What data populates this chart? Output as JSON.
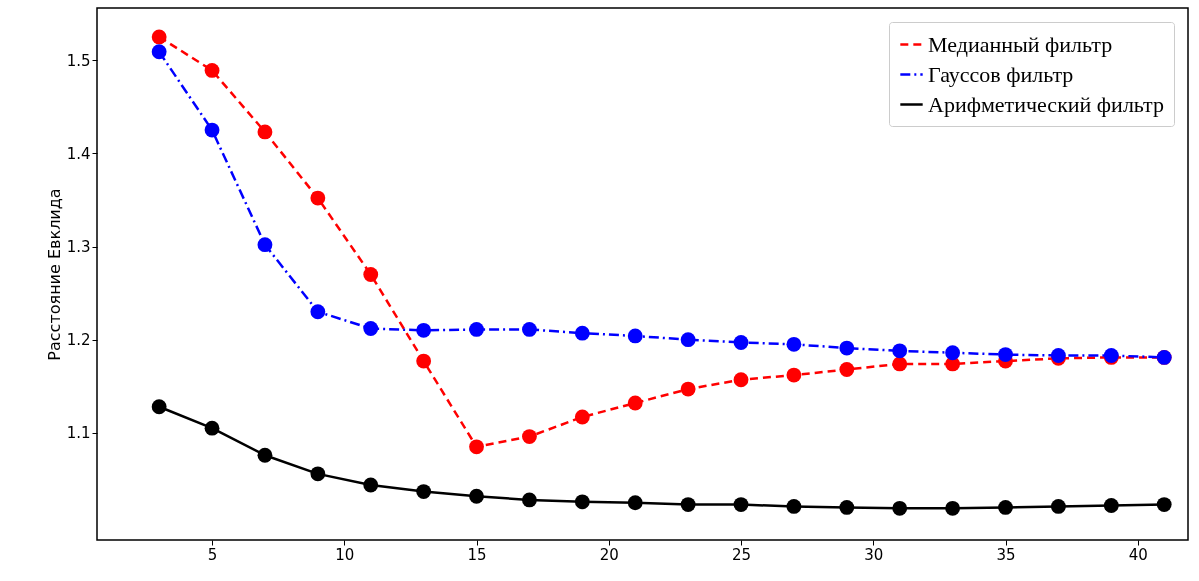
{
  "chart_data": {
    "type": "line",
    "ylabel": "Расстояние Евклида",
    "x": [
      3,
      5,
      7,
      9,
      11,
      13,
      15,
      17,
      19,
      21,
      23,
      25,
      27,
      29,
      31,
      33,
      35,
      37,
      39,
      41
    ],
    "series": [
      {
        "name": "Медианный фильтр",
        "color": "#ff0000",
        "line_style": "dashed",
        "values": [
          1.525,
          1.489,
          1.423,
          1.352,
          1.27,
          1.177,
          1.085,
          1.096,
          1.117,
          1.132,
          1.147,
          1.157,
          1.162,
          1.168,
          1.174,
          1.174,
          1.177,
          1.18,
          1.181,
          1.181
        ]
      },
      {
        "name": "Гауссов фильтр",
        "color": "#0000ff",
        "line_style": "dashdot",
        "values": [
          1.509,
          1.425,
          1.302,
          1.23,
          1.212,
          1.21,
          1.211,
          1.211,
          1.207,
          1.204,
          1.2,
          1.197,
          1.195,
          1.191,
          1.188,
          1.186,
          1.184,
          1.183,
          1.183,
          1.181
        ]
      },
      {
        "name": "Арифметический фильтр",
        "color": "#000000",
        "line_style": "solid",
        "values": [
          1.128,
          1.105,
          1.076,
          1.056,
          1.044,
          1.037,
          1.032,
          1.028,
          1.026,
          1.025,
          1.023,
          1.023,
          1.021,
          1.02,
          1.019,
          1.019,
          1.02,
          1.021,
          1.022,
          1.023
        ]
      }
    ],
    "xlim": [
      0.65,
      41.9
    ],
    "ylim": [
      0.985,
      1.556
    ],
    "xticks": [
      5,
      10,
      15,
      20,
      25,
      30,
      35,
      40
    ],
    "yticks": [
      1.1,
      1.2,
      1.3,
      1.4,
      1.5
    ],
    "marker": "circle",
    "legend": "top right",
    "grid": false
  }
}
